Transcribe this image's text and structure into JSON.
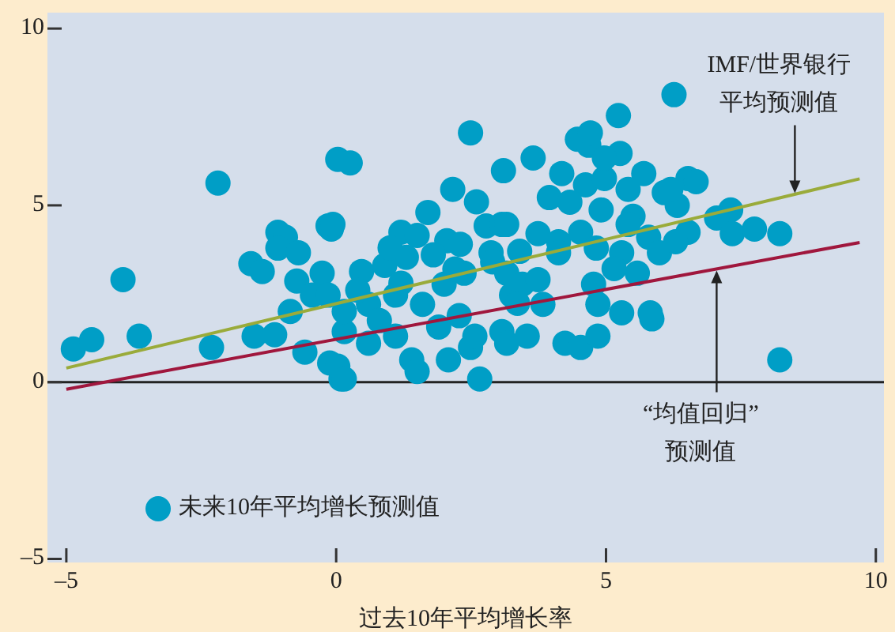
{
  "chart_data": {
    "type": "scatter",
    "xlabel": "过去10年平均增长率",
    "xlim": [
      -5.35,
      10.15
    ],
    "ylim": [
      -5.1,
      10.45
    ],
    "xticks": [
      {
        "value": -5,
        "label": "–5"
      },
      0,
      5,
      10
    ],
    "yticks": [
      {
        "value": -5,
        "label": "–5"
      },
      0,
      5,
      10
    ],
    "grid": false,
    "legend": "bottom left",
    "marker": "circle",
    "ref_lines": [
      {
        "axis": "y",
        "value": 0,
        "color": "#222222"
      }
    ],
    "annotations": [
      {
        "text": "IMF/世界银行平均预测值",
        "x": 8.5,
        "y": 5.3
      },
      {
        "text": "“均值回归”预测值",
        "x": 7.05,
        "y": 3.2
      }
    ],
    "series": [
      {
        "name": "未来10年平均增长预测值",
        "color": "#009ec6",
        "x": [
          -4.87,
          -4.53,
          -3.95,
          -3.65,
          -2.31,
          -2.19,
          -1.58,
          -1.37,
          -1.52,
          -1.14,
          -1.08,
          -0.94,
          -1.08,
          -0.7,
          -0.73,
          -0.85,
          -0.58,
          -0.44,
          -0.26,
          -0.15,
          -0.09,
          0.03,
          0.26,
          -0.12,
          0.09,
          -0.15,
          -0.06,
          0.03,
          0.15,
          0.15,
          0.47,
          0.9,
          1.3,
          0.6,
          1.1,
          1.4,
          1.5,
          2.08,
          2.66,
          2.49,
          3.07,
          2.28,
          3.25,
          1.6,
          1.1,
          0.6,
          2.0,
          2.37,
          0.8,
          1.9,
          2.57,
          2.49,
          3.1,
          3.65,
          2.16,
          2.6,
          1.7,
          1.2,
          1.5,
          2.05,
          2.78,
          3.07,
          2.87,
          0.15,
          6.26,
          5.23,
          4.47,
          4.68,
          5.26,
          4.18,
          5.7,
          6.52,
          3.95,
          4.62,
          4.97,
          5.41,
          6.08,
          6.32,
          4.33,
          4.91,
          5.5,
          3.16,
          3.74,
          4.12,
          4.53,
          5.41,
          5.79,
          5.99,
          6.52,
          6.29,
          4.12,
          4.82,
          5.29,
          5.58,
          3.16,
          3.45,
          3.74,
          3.36,
          3.83,
          4.77,
          4.85,
          5.29,
          5.85,
          3.54,
          3.16,
          4.24,
          4.53,
          4.85,
          6.67,
          7.31,
          7.05,
          7.34,
          7.75,
          8.22,
          8.22,
          4.71,
          4.97,
          6.2,
          5.15,
          5.82,
          1.0,
          1.8,
          2.3,
          2.9,
          3.4,
          0.4,
          1.2,
          2.2
        ],
        "values": [
          0.94,
          1.2,
          2.9,
          1.3,
          0.98,
          5.63,
          3.35,
          3.13,
          1.3,
          1.34,
          4.24,
          4.1,
          3.79,
          3.66,
          2.86,
          2.0,
          0.85,
          2.46,
          3.08,
          4.42,
          4.33,
          6.3,
          6.2,
          0.54,
          0.09,
          2.46,
          4.46,
          0.45,
          1.43,
          0.09,
          3.13,
          3.3,
          3.53,
          1.1,
          1.3,
          0.63,
          0.3,
          0.63,
          0.09,
          0.98,
          1.43,
          1.88,
          2.46,
          2.2,
          2.46,
          2.2,
          2.77,
          3.08,
          1.74,
          1.56,
          1.3,
          7.05,
          5.98,
          6.34,
          5.45,
          5.1,
          4.8,
          4.24,
          4.15,
          4.0,
          4.42,
          4.46,
          3.66,
          2.0,
          8.13,
          7.54,
          6.87,
          6.7,
          6.47,
          5.9,
          5.9,
          5.76,
          5.22,
          5.58,
          5.76,
          5.45,
          5.36,
          5.0,
          5.09,
          4.87,
          4.69,
          4.46,
          4.2,
          3.97,
          4.24,
          4.46,
          4.1,
          3.66,
          4.24,
          3.97,
          3.66,
          3.79,
          3.66,
          3.08,
          3.08,
          2.77,
          2.9,
          2.23,
          2.2,
          2.77,
          2.2,
          1.96,
          1.79,
          1.3,
          1.1,
          1.1,
          0.98,
          1.3,
          5.67,
          4.87,
          4.64,
          4.2,
          4.33,
          4.2,
          0.63,
          7.05,
          6.34,
          5.45,
          3.21,
          1.96,
          3.8,
          3.6,
          3.9,
          3.4,
          3.7,
          2.6,
          2.8,
          3.2
        ]
      },
      {
        "type": "line",
        "marker": "none",
        "color": "#9aab3a",
        "x": [
          -5,
          9.7
        ],
        "values": [
          0.4,
          5.75
        ]
      },
      {
        "type": "line",
        "marker": "none",
        "color": "#a0173d",
        "x": [
          -5,
          9.7
        ],
        "values": [
          -0.2,
          3.95
        ]
      }
    ]
  }
}
